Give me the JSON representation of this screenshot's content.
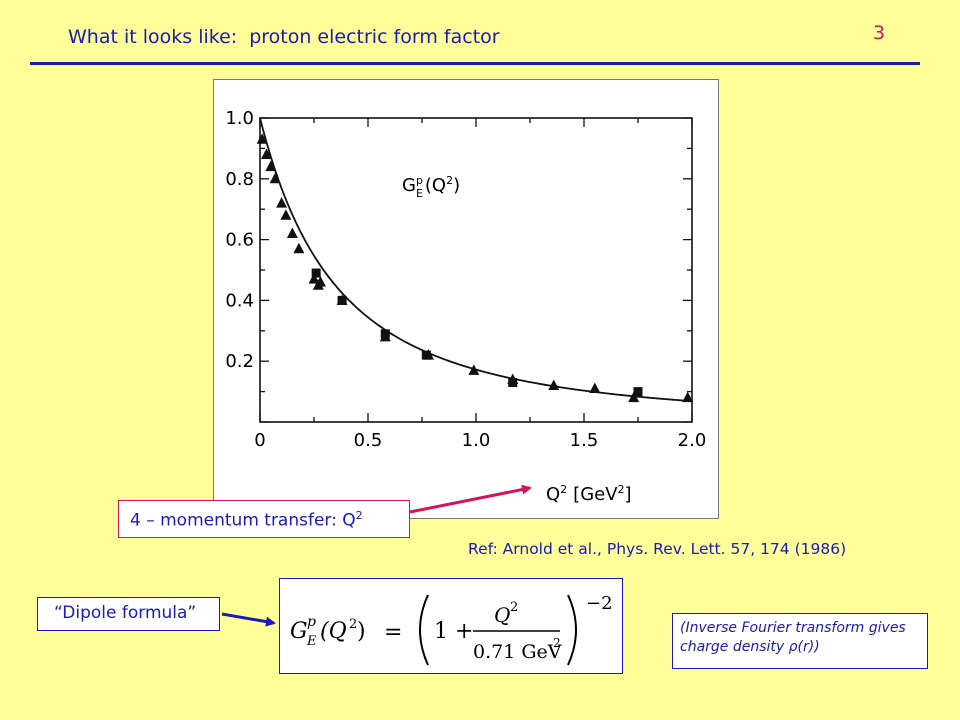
{
  "header": {
    "title": "What it looks like:",
    "subtitle": "proton electric form factor",
    "page_number": "3"
  },
  "labels": {
    "momentum_prefix": "4 – momentum transfer:  Q",
    "momentum_sup": "2",
    "reference": "Ref:  Arnold et al., Phys. Rev. Lett. 57, 174 (1986)",
    "dipole": "“Dipole formula”",
    "inverse_fourier": "(Inverse Fourier transform gives charge density ρ(r))"
  },
  "formula": {
    "lhs": "G",
    "lhs_sup": "p",
    "lhs_sub": "E",
    "lhs_arg": "(Q",
    "lhs_arg_sup": "2",
    "lhs_close": ")",
    "equals": "=",
    "one_plus": "1 +",
    "numerator": "Q",
    "numerator_sup": "2",
    "denominator": "0.71 GeV",
    "denominator_sup": "2",
    "exponent": "−2"
  },
  "colors": {
    "background": "#ffff99",
    "text_blue": "#1a1ab8",
    "accent_magenta": "#d4145a"
  },
  "chart_data": {
    "type": "scatter",
    "annotation": "G",
    "annotation_sup": "p",
    "annotation_sub": "E",
    "annotation_arg": "(Q",
    "annotation_arg_sup": "2",
    "annotation_close": ")",
    "xlabel": "Q",
    "xlabel_sup": "2",
    "xlabel_unit": "[GeV",
    "xlabel_unit_sup": "2",
    "xlabel_close": "]",
    "xlim": [
      0,
      2.0
    ],
    "ylim": [
      0,
      1.0
    ],
    "x_ticks": [
      "0",
      "0.5",
      "1.0",
      "1.5",
      "2.0"
    ],
    "y_ticks": [
      "0.2",
      "0.4",
      "0.6",
      "0.8",
      "1.0"
    ],
    "series": [
      {
        "marker": "triangle",
        "x": [
          0.01,
          0.03,
          0.05,
          0.07,
          0.1,
          0.12,
          0.15,
          0.18,
          0.25,
          0.27,
          0.28,
          0.38,
          0.58,
          0.78,
          0.99,
          1.17,
          1.36,
          1.55,
          1.73,
          1.98
        ],
        "y": [
          0.93,
          0.88,
          0.84,
          0.8,
          0.72,
          0.68,
          0.62,
          0.57,
          0.47,
          0.45,
          0.46,
          0.4,
          0.28,
          0.22,
          0.17,
          0.14,
          0.12,
          0.11,
          0.08,
          0.08
        ]
      },
      {
        "marker": "square",
        "x": [
          0.26,
          0.38,
          0.58,
          0.77,
          1.17,
          1.75
        ],
        "y": [
          0.49,
          0.4,
          0.29,
          0.22,
          0.13,
          0.1
        ]
      }
    ],
    "fit_curve": "dipole",
    "fit_parameter": 0.71
  }
}
